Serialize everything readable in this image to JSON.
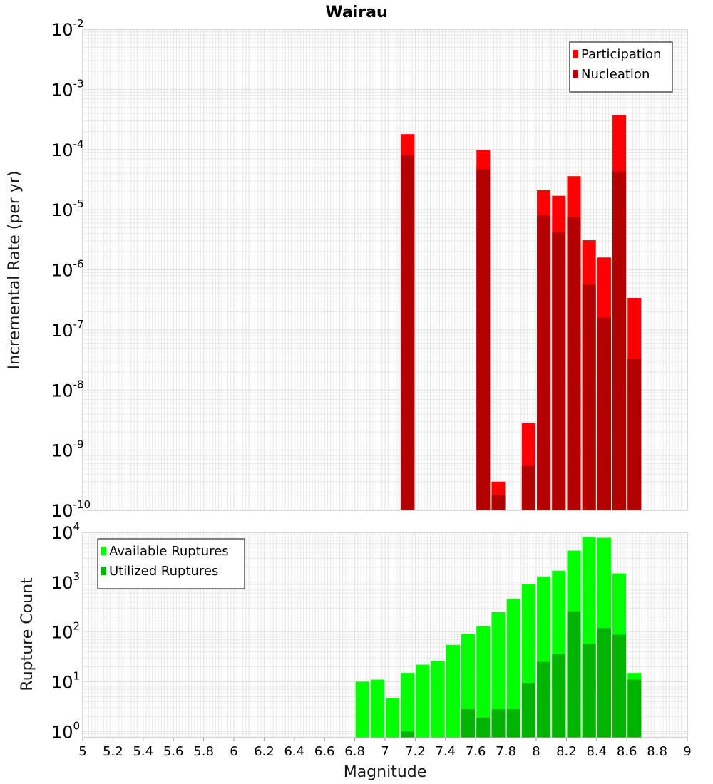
{
  "title": "Wairau",
  "colors": {
    "participation": "#ff0000",
    "nucleation": "#b30000",
    "available": "#00ff00",
    "utilized": "#00b300"
  },
  "chart_data": [
    {
      "type": "bar",
      "panel": "top",
      "title": "Wairau",
      "xlabel": "Magnitude",
      "ylabel": "Incremental Rate (per yr)",
      "yscale": "log",
      "xlim": [
        5,
        9
      ],
      "ylim": [
        1e-10,
        0.01
      ],
      "ytick_base": "10",
      "ytick_exponents": [
        "-2",
        "-3",
        "-4",
        "-5",
        "-6",
        "-7",
        "-8",
        "-9",
        "-10"
      ],
      "legend": {
        "position": "top-right",
        "entries": [
          "Participation",
          "Nucleation"
        ]
      },
      "bar_width": 0.09,
      "x": [
        7.15,
        7.65,
        7.75,
        7.95,
        8.05,
        8.15,
        8.25,
        8.35,
        8.45,
        8.55,
        8.65
      ],
      "series": [
        {
          "name": "Participation",
          "values": [
            0.00018,
            9.8e-05,
            3e-10,
            2.8e-09,
            2.1e-05,
            1.7e-05,
            3.6e-05,
            3.1e-06,
            1.6e-06,
            0.00037,
            3.4e-07
          ]
        },
        {
          "name": "Nucleation",
          "values": [
            8e-05,
            4.7e-05,
            1.8e-10,
            5.5e-10,
            8e-06,
            4.2e-06,
            7.5e-06,
            5.7e-07,
            1.6e-07,
            4.3e-05,
            3.3e-08
          ]
        }
      ]
    },
    {
      "type": "bar",
      "panel": "bottom",
      "xlabel": "Magnitude",
      "ylabel": "Rupture Count",
      "yscale": "log",
      "xlim": [
        5,
        9
      ],
      "ylim": [
        0.75,
        10000
      ],
      "ytick_base": "10",
      "ytick_exponents": [
        "4",
        "3",
        "2",
        "1",
        "0"
      ],
      "xticks": [
        "5",
        "5.2",
        "5.4",
        "5.6",
        "5.8",
        "6",
        "6.2",
        "6.4",
        "6.6",
        "6.8",
        "7",
        "7.2",
        "7.4",
        "7.6",
        "7.8",
        "8",
        "8.2",
        "8.4",
        "8.6",
        "8.8",
        "9"
      ],
      "legend": {
        "position": "top-left",
        "entries": [
          "Available Ruptures",
          "Utilized Ruptures"
        ]
      },
      "bar_width": 0.09,
      "x": [
        6.85,
        6.95,
        7.05,
        7.15,
        7.25,
        7.35,
        7.45,
        7.55,
        7.65,
        7.75,
        7.85,
        7.95,
        8.05,
        8.15,
        8.25,
        8.35,
        8.45,
        8.55,
        8.65
      ],
      "series": [
        {
          "name": "Available Ruptures",
          "values": [
            10,
            11,
            4.6,
            15,
            22,
            26,
            55,
            90,
            130,
            250,
            460,
            900,
            1300,
            1700,
            4300,
            8000,
            7800,
            1500,
            15
          ]
        },
        {
          "name": "Utilized Ruptures",
          "values": [
            0,
            0,
            0,
            1,
            0,
            0,
            0,
            2.8,
            1.9,
            2.8,
            2.8,
            9.5,
            25,
            36,
            260,
            58,
            120,
            88,
            11
          ]
        }
      ]
    }
  ]
}
